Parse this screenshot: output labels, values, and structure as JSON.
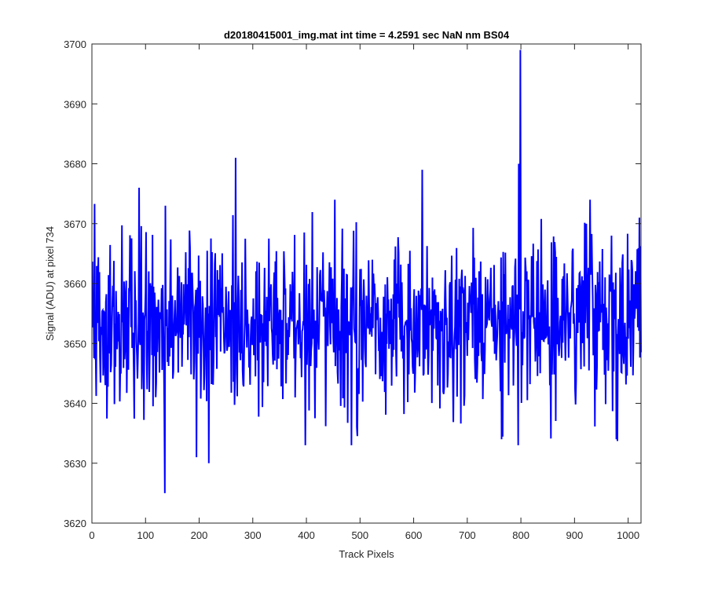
{
  "chart_data": {
    "type": "line",
    "title": "d20180415001_img.mat int time = 4.2591 sec  NaN nm BS04",
    "xlabel": "Track Pixels",
    "ylabel": "Signal (ADU) at pixel 734",
    "xlim": [
      0,
      1024
    ],
    "ylim": [
      3620,
      3700
    ],
    "xticks": [
      0,
      100,
      200,
      300,
      400,
      500,
      600,
      700,
      800,
      900,
      1000
    ],
    "yticks": [
      3620,
      3630,
      3640,
      3650,
      3660,
      3670,
      3680,
      3690,
      3700
    ],
    "grid": false,
    "box": true,
    "line_color": "#0000ff",
    "axis_color": "#262626",
    "series": [
      {
        "x_start": 1,
        "x_step": 1,
        "noise_model": {
          "count": 1024,
          "mean": 3653.5,
          "sd": 7.0,
          "seed": 20180415
        },
        "peaks": [
          {
            "x": 88,
            "y": 3676
          },
          {
            "x": 136,
            "y": 3625
          },
          {
            "x": 137,
            "y": 3673
          },
          {
            "x": 195,
            "y": 3631
          },
          {
            "x": 218,
            "y": 3630
          },
          {
            "x": 268,
            "y": 3681
          },
          {
            "x": 398,
            "y": 3633
          },
          {
            "x": 616,
            "y": 3679
          },
          {
            "x": 764,
            "y": 3634
          },
          {
            "x": 796,
            "y": 3680
          },
          {
            "x": 799,
            "y": 3699
          },
          {
            "x": 978,
            "y": 3634
          },
          {
            "x": 1021,
            "y": 3671
          }
        ]
      }
    ]
  }
}
